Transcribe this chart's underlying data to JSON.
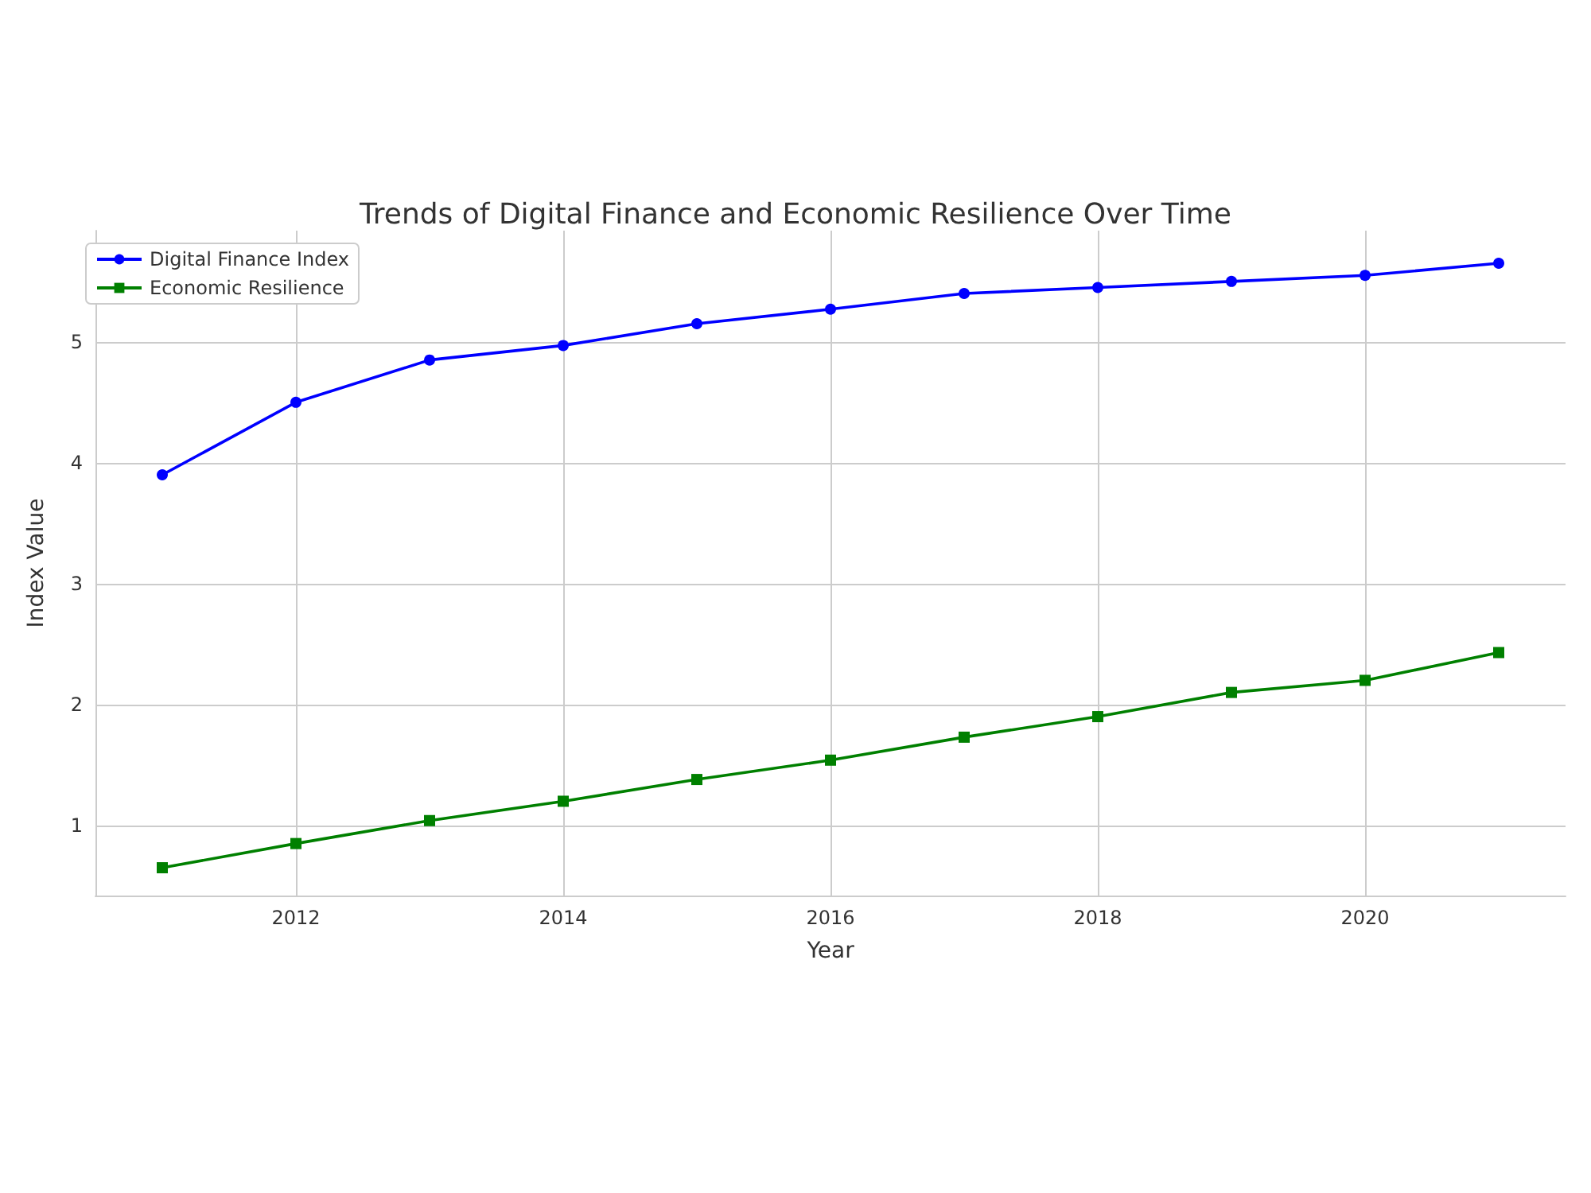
{
  "chart_data": {
    "type": "line",
    "title": "Trends of Digital Finance and Economic Resilience Over Time",
    "xlabel": "Year",
    "ylabel": "Index Value",
    "x": [
      2011,
      2012,
      2013,
      2014,
      2015,
      2016,
      2017,
      2018,
      2019,
      2020,
      2021
    ],
    "series": [
      {
        "name": "Digital Finance Index",
        "color": "#0000ff",
        "marker": "circle",
        "values": [
          3.9,
          4.5,
          4.85,
          4.97,
          5.15,
          5.27,
          5.4,
          5.45,
          5.5,
          5.55,
          5.65
        ]
      },
      {
        "name": "Economic Resilience",
        "color": "#008000",
        "marker": "square",
        "values": [
          0.65,
          0.85,
          1.04,
          1.2,
          1.38,
          1.54,
          1.73,
          1.9,
          2.1,
          2.2,
          2.43
        ]
      }
    ],
    "xlim": [
      2010.5,
      2021.5
    ],
    "xticks": [
      2012,
      2014,
      2016,
      2018,
      2020
    ],
    "ylim": [
      0.42,
      5.92
    ],
    "yticks": [
      1,
      2,
      3,
      4,
      5
    ],
    "grid": true,
    "legend": "top left",
    "line_style": "solid"
  }
}
